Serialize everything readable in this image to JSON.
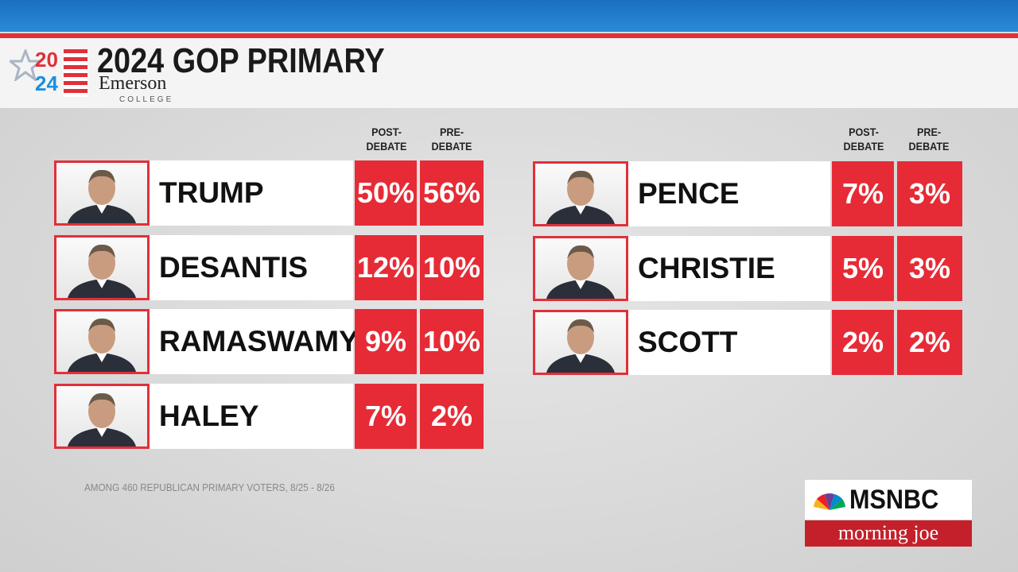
{
  "header": {
    "logo_top": "20",
    "logo_bottom": "24",
    "logo_name": "Emerson",
    "logo_sub": "COLLEGE",
    "title": "2024 GOP PRIMARY"
  },
  "column_headers": {
    "post_debate": [
      "POST-",
      "DEBATE"
    ],
    "pre_debate": [
      "PRE-",
      "DEBATE"
    ]
  },
  "candidates": [
    {
      "name": "TRUMP",
      "post_debate": "50%",
      "pre_debate": "56%"
    },
    {
      "name": "DESANTIS",
      "post_debate": "12%",
      "pre_debate": "10%"
    },
    {
      "name": "RAMASWAMY",
      "post_debate": "9%",
      "pre_debate": "10%"
    },
    {
      "name": "HALEY",
      "post_debate": "7%",
      "pre_debate": "2%"
    },
    {
      "name": "PENCE",
      "post_debate": "7%",
      "pre_debate": "3%"
    },
    {
      "name": "CHRISTIE",
      "post_debate": "5%",
      "pre_debate": "3%"
    },
    {
      "name": "SCOTT",
      "post_debate": "2%",
      "pre_debate": "2%"
    }
  ],
  "footnote": "AMONG 460 REPUBLICAN PRIMARY VOTERS, 8/25 - 8/26",
  "network": {
    "logo": "MSNBC",
    "show": "morning joe"
  }
}
